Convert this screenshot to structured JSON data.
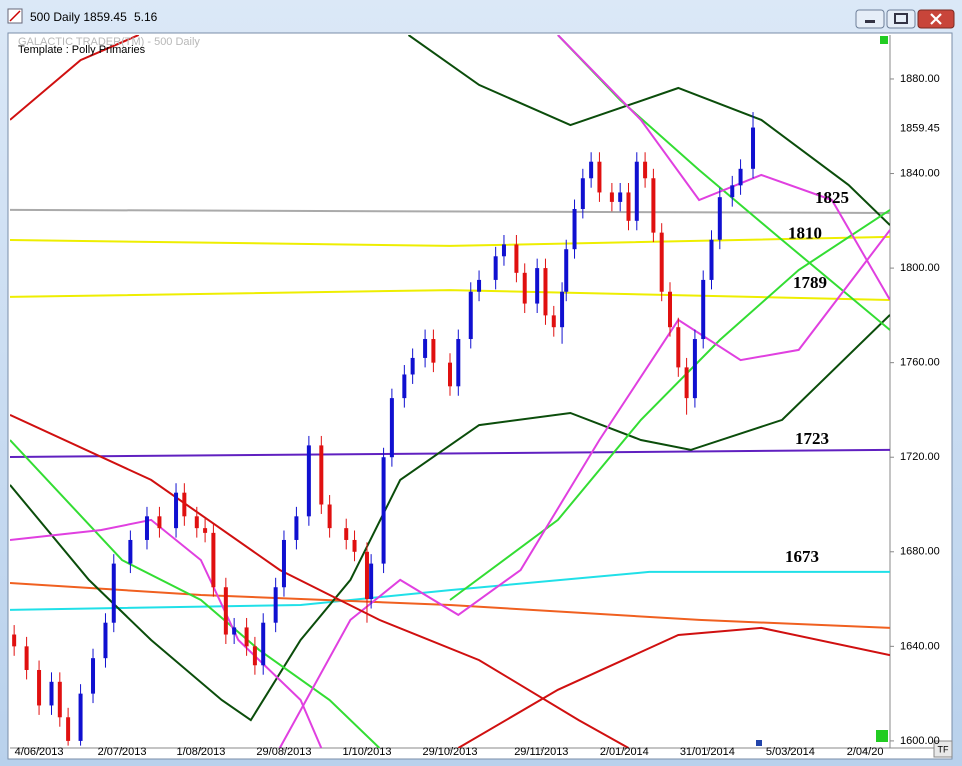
{
  "window": {
    "title": "500 Daily 1859.45",
    "change": "5.16",
    "tf_button": "TF"
  },
  "chart_data": {
    "type": "candlestick",
    "legend_lines": [
      "GALACTIC TRADER(TM) - 500 Daily",
      "Template : Polly Primaries"
    ],
    "price_label": "1859.45",
    "xlim": [
      0,
      212
    ],
    "ylim": [
      1597,
      1898.6
    ],
    "xticks": [
      {
        "value": 7,
        "label": "4/06/2013"
      },
      {
        "value": 27,
        "label": "2/07/2013"
      },
      {
        "value": 46,
        "label": "1/08/2013"
      },
      {
        "value": 66,
        "label": "29/08/2013"
      },
      {
        "value": 86,
        "label": "1/10/2013"
      },
      {
        "value": 106,
        "label": "29/10/2013"
      },
      {
        "value": 128,
        "label": "29/11/2013"
      },
      {
        "value": 148,
        "label": "2/01/2014"
      },
      {
        "value": 168,
        "label": "31/01/2014"
      },
      {
        "value": 188,
        "label": "5/03/2014"
      },
      {
        "value": 206,
        "label": "2/04/20"
      }
    ],
    "yticks": [
      {
        "value": 1600,
        "label": "1600.00"
      },
      {
        "value": 1640,
        "label": "1640.00"
      },
      {
        "value": 1680,
        "label": "1680.00"
      },
      {
        "value": 1720,
        "label": "1720.00"
      },
      {
        "value": 1760,
        "label": "1760.00"
      },
      {
        "value": 1800,
        "label": "1800.00"
      },
      {
        "value": 1840,
        "label": "1840.00"
      },
      {
        "value": 1880,
        "label": "1880.00"
      }
    ],
    "up_color": "#1010d0",
    "down_color": "#e01010",
    "candles": {
      "x": [
        1,
        4,
        7,
        10,
        12,
        14,
        17,
        20,
        23,
        25,
        29,
        33,
        36,
        40,
        42,
        45,
        47,
        49,
        52,
        54,
        57,
        59,
        61,
        64,
        66,
        69,
        72,
        75,
        77,
        81,
        83,
        86,
        87,
        90,
        92,
        95,
        97,
        100,
        102,
        106,
        108,
        111,
        113,
        117,
        119,
        122,
        124,
        127,
        129,
        131,
        133,
        134,
        136,
        138,
        140,
        142,
        145,
        147,
        149,
        151,
        153,
        155,
        157,
        159,
        161,
        163,
        165,
        167,
        169,
        171,
        174,
        176,
        179
      ],
      "ohlc": [
        [
          1645,
          1649,
          1636,
          1640
        ],
        [
          1640,
          1644,
          1626,
          1630
        ],
        [
          1630,
          1634,
          1611,
          1615
        ],
        [
          1615,
          1629,
          1611,
          1625
        ],
        [
          1625,
          1629,
          1606,
          1610
        ],
        [
          1610,
          1614,
          1598,
          1600
        ],
        [
          1600,
          1624,
          1598,
          1620
        ],
        [
          1620,
          1639,
          1616,
          1635
        ],
        [
          1635,
          1654,
          1631,
          1650
        ],
        [
          1650,
          1679,
          1646,
          1675
        ],
        [
          1675,
          1689,
          1671,
          1685
        ],
        [
          1685,
          1699,
          1681,
          1695
        ],
        [
          1695,
          1699,
          1686,
          1690
        ],
        [
          1690,
          1709,
          1686,
          1705
        ],
        [
          1705,
          1709,
          1691,
          1695
        ],
        [
          1695,
          1699,
          1686,
          1690
        ],
        [
          1690,
          1694,
          1684,
          1688
        ],
        [
          1688,
          1692,
          1661,
          1665
        ],
        [
          1665,
          1669,
          1641,
          1645
        ],
        [
          1645,
          1652,
          1641,
          1648
        ],
        [
          1648,
          1652,
          1636,
          1640
        ],
        [
          1640,
          1644,
          1628,
          1632
        ],
        [
          1632,
          1654,
          1628,
          1650
        ],
        [
          1650,
          1669,
          1646,
          1665
        ],
        [
          1665,
          1689,
          1661,
          1685
        ],
        [
          1685,
          1699,
          1681,
          1695
        ],
        [
          1695,
          1729,
          1691,
          1725
        ],
        [
          1725,
          1729,
          1696,
          1700
        ],
        [
          1700,
          1704,
          1686,
          1690
        ],
        [
          1690,
          1694,
          1681,
          1685
        ],
        [
          1685,
          1689,
          1676,
          1680
        ],
        [
          1680,
          1684,
          1650,
          1660
        ],
        [
          1660,
          1679,
          1656,
          1675
        ],
        [
          1675,
          1724,
          1671,
          1720
        ],
        [
          1720,
          1749,
          1716,
          1745
        ],
        [
          1745,
          1759,
          1741,
          1755
        ],
        [
          1755,
          1766,
          1751,
          1762
        ],
        [
          1762,
          1774,
          1758,
          1770
        ],
        [
          1770,
          1774,
          1756,
          1760
        ],
        [
          1760,
          1764,
          1746,
          1750
        ],
        [
          1750,
          1774,
          1746,
          1770
        ],
        [
          1770,
          1794,
          1766,
          1790
        ],
        [
          1790,
          1799,
          1786,
          1795
        ],
        [
          1795,
          1809,
          1791,
          1805
        ],
        [
          1805,
          1814,
          1801,
          1810
        ],
        [
          1810,
          1814,
          1794,
          1798
        ],
        [
          1798,
          1802,
          1781,
          1785
        ],
        [
          1785,
          1804,
          1781,
          1800
        ],
        [
          1800,
          1804,
          1776,
          1780
        ],
        [
          1780,
          1784,
          1771,
          1775
        ],
        [
          1775,
          1794,
          1768,
          1790
        ],
        [
          1790,
          1812,
          1786,
          1808
        ],
        [
          1808,
          1829,
          1804,
          1825
        ],
        [
          1825,
          1842,
          1821,
          1838
        ],
        [
          1838,
          1849,
          1834,
          1845
        ],
        [
          1845,
          1849,
          1828,
          1832
        ],
        [
          1832,
          1836,
          1824,
          1828
        ],
        [
          1828,
          1836,
          1824,
          1832
        ],
        [
          1832,
          1836,
          1816,
          1820
        ],
        [
          1820,
          1849,
          1816,
          1845
        ],
        [
          1845,
          1849,
          1834,
          1838
        ],
        [
          1838,
          1842,
          1811,
          1815
        ],
        [
          1815,
          1819,
          1786,
          1790
        ],
        [
          1790,
          1794,
          1771,
          1775
        ],
        [
          1775,
          1779,
          1754,
          1758
        ],
        [
          1758,
          1762,
          1738,
          1745
        ],
        [
          1745,
          1774,
          1741,
          1770
        ],
        [
          1770,
          1799,
          1766,
          1795
        ],
        [
          1795,
          1816,
          1791,
          1812
        ],
        [
          1812,
          1834,
          1808,
          1830
        ],
        [
          1830,
          1839,
          1826,
          1835
        ],
        [
          1835,
          1846,
          1831,
          1842
        ],
        [
          1842,
          1866,
          1838,
          1859.45
        ]
      ]
    },
    "series": [
      {
        "color": "#aaaaaa",
        "x": [
          0,
          212
        ],
        "values": [
          1824.6,
          1823.3
        ]
      },
      {
        "color": "#eeee00",
        "x": [
          0,
          106,
          212
        ],
        "values": [
          1811.9,
          1809.4,
          1813.2
        ]
      },
      {
        "color": "#eeee00",
        "x": [
          0,
          106,
          212
        ],
        "values": [
          1787.8,
          1790.7,
          1786.5
        ]
      },
      {
        "color": "#6020c0",
        "x": [
          0,
          212
        ],
        "values": [
          1720.1,
          1723.1
        ]
      },
      {
        "color": "#20e0e8",
        "x": [
          0,
          70,
          106,
          154,
          212
        ],
        "values": [
          1655.4,
          1657.5,
          1663.8,
          1671.5,
          1671.5
        ]
      },
      {
        "color": "#f06020",
        "x": [
          0,
          46,
          106,
          166,
          212
        ],
        "values": [
          1666.8,
          1661.7,
          1657.5,
          1651.2,
          1647.8
        ]
      },
      {
        "color": "#0b4d0b",
        "x": [
          96,
          113,
          135,
          161,
          181,
          202,
          212
        ],
        "values": [
          1898.6,
          1877.5,
          1860.5,
          1876.2,
          1862.7,
          1835.2,
          1818.2
        ]
      },
      {
        "color": "#0b4d0b",
        "x": [
          0,
          19,
          34,
          51,
          58,
          70,
          82,
          94,
          113,
          135,
          152,
          164,
          186,
          212
        ],
        "values": [
          1708.3,
          1668.1,
          1642.7,
          1617.3,
          1608.8,
          1642.7,
          1668.1,
          1710.4,
          1733.6,
          1738.7,
          1727.3,
          1723.1,
          1735.8,
          1780.2
        ]
      },
      {
        "color": "#33dd33",
        "x": [
          0,
          27,
          46,
          60,
          77,
          89
        ],
        "values": [
          1727.3,
          1676.5,
          1659.6,
          1638.5,
          1617.3,
          1597
        ]
      },
      {
        "color": "#33dd33",
        "x": [
          132,
          147,
          166,
          186,
          212
        ],
        "values": [
          1898.6,
          1871.1,
          1841.5,
          1811.9,
          1773.8
        ]
      },
      {
        "color": "#33dd33",
        "x": [
          106,
          132,
          152,
          171,
          190,
          212
        ],
        "values": [
          1659.6,
          1693.5,
          1735.8,
          1769.6,
          1799.2,
          1824.6
        ]
      },
      {
        "color": "#e040e0",
        "x": [
          0,
          22,
          34,
          46,
          55,
          70,
          75
        ],
        "values": [
          1685,
          1689.2,
          1693.5,
          1676.5,
          1642.7,
          1617.3,
          1597
        ]
      },
      {
        "color": "#e040e0",
        "x": [
          132,
          152,
          166,
          181,
          198,
          212
        ],
        "values": [
          1898.6,
          1862.7,
          1828.8,
          1839.4,
          1828.8,
          1786.5
        ]
      },
      {
        "color": "#e040e0",
        "x": [
          65,
          82,
          94,
          108,
          123,
          142,
          161,
          176,
          190,
          212
        ],
        "values": [
          1597,
          1651.2,
          1668.1,
          1653.3,
          1672.3,
          1727.3,
          1778.1,
          1761.1,
          1765.4,
          1816.1
        ]
      },
      {
        "color": "#d01010",
        "x": [
          0,
          17,
          31
        ],
        "values": [
          1862.7,
          1888.0,
          1898.6
        ]
      },
      {
        "color": "#d01010",
        "x": [
          0,
          34,
          65,
          89,
          113,
          137,
          149
        ],
        "values": [
          1737.9,
          1710.4,
          1672.3,
          1651.2,
          1634.2,
          1608.8,
          1597
        ]
      },
      {
        "color": "#d01010",
        "x": [
          108,
          132,
          161,
          181,
          212
        ],
        "values": [
          1597,
          1621.6,
          1644.8,
          1647.8,
          1636.3
        ]
      }
    ],
    "annotations": [
      {
        "label": "1825"
      },
      {
        "label": "1810"
      },
      {
        "label": "1789"
      },
      {
        "label": "1723"
      },
      {
        "label": "1673"
      }
    ]
  }
}
